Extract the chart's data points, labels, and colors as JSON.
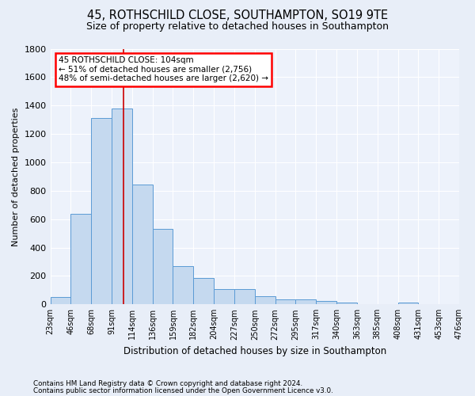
{
  "title1": "45, ROTHSCHILD CLOSE, SOUTHAMPTON, SO19 9TE",
  "title2": "Size of property relative to detached houses in Southampton",
  "xlabel": "Distribution of detached houses by size in Southampton",
  "ylabel": "Number of detached properties",
  "bar_heights": [
    50,
    640,
    1310,
    1380,
    845,
    530,
    270,
    185,
    105,
    105,
    60,
    35,
    35,
    25,
    15,
    0,
    0,
    15,
    0,
    0
  ],
  "bin_labels": [
    "23sqm",
    "46sqm",
    "68sqm",
    "91sqm",
    "114sqm",
    "136sqm",
    "159sqm",
    "182sqm",
    "204sqm",
    "227sqm",
    "250sqm",
    "272sqm",
    "295sqm",
    "317sqm",
    "340sqm",
    "363sqm",
    "385sqm",
    "408sqm",
    "431sqm",
    "453sqm",
    "476sqm"
  ],
  "bar_color": "#c5d9ef",
  "bar_edge_color": "#5b9bd5",
  "vline_color": "#cc0000",
  "vline_x": 3.57,
  "annotation_title": "45 ROTHSCHILD CLOSE: 104sqm",
  "annotation_line1": "← 51% of detached houses are smaller (2,756)",
  "annotation_line2": "48% of semi-detached houses are larger (2,620) →",
  "ylim": [
    0,
    1800
  ],
  "yticks": [
    0,
    200,
    400,
    600,
    800,
    1000,
    1200,
    1400,
    1600,
    1800
  ],
  "footnote1": "Contains HM Land Registry data © Crown copyright and database right 2024.",
  "footnote2": "Contains public sector information licensed under the Open Government Licence v3.0.",
  "bg_color": "#e8eef8",
  "plot_bg_color": "#edf2fb",
  "grid_color": "#ffffff",
  "title1_fontsize": 10.5,
  "title2_fontsize": 9
}
